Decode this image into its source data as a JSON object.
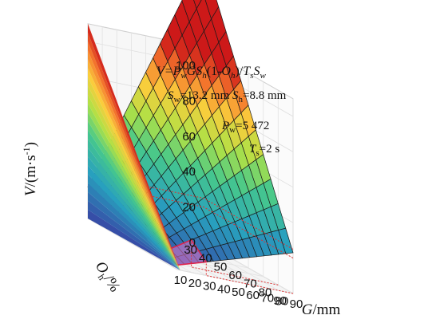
{
  "chart_data": {
    "type": "surface3d",
    "title": "",
    "annotations": {
      "formula": "V=PwGSh(1-Oh)/TsSw",
      "sw": "Sw=13.2 mm",
      "sh": "Sh=8.8 mm",
      "pw": "Pw=5 472",
      "ts": "Ts=2 s"
    },
    "params": {
      "Pw": 5472,
      "Sw_mm": 13.2,
      "Sh_mm": 8.8,
      "Ts_s": 2
    },
    "xlabel": "G/mm",
    "ylabel": "Oh/%",
    "zlabel": "V/(m·s-1)",
    "x_ticks": [
      "90",
      "80",
      "70",
      "60",
      "50",
      "40",
      "30",
      "20",
      "10"
    ],
    "y_ticks": [
      "30",
      "40",
      "50",
      "60",
      "70",
      "80",
      "90"
    ],
    "z_ticks": [
      "0",
      "20",
      "40",
      "60",
      "80",
      "100"
    ],
    "xlim": [
      10,
      90
    ],
    "ylim": [
      30,
      90
    ],
    "zlim": [
      0,
      110
    ],
    "grid_x": [
      10,
      15,
      20,
      25,
      30,
      35,
      40,
      45,
      50,
      55,
      60,
      65,
      70,
      75,
      80,
      85,
      90
    ],
    "grid_y": [
      30,
      35,
      40,
      45,
      50,
      55,
      60,
      65,
      70,
      75,
      80,
      85,
      90
    ],
    "highlight_region": {
      "x": [
        10,
        30
      ],
      "y": [
        80,
        90
      ]
    },
    "guide_levels": [
      20,
      25
    ]
  }
}
